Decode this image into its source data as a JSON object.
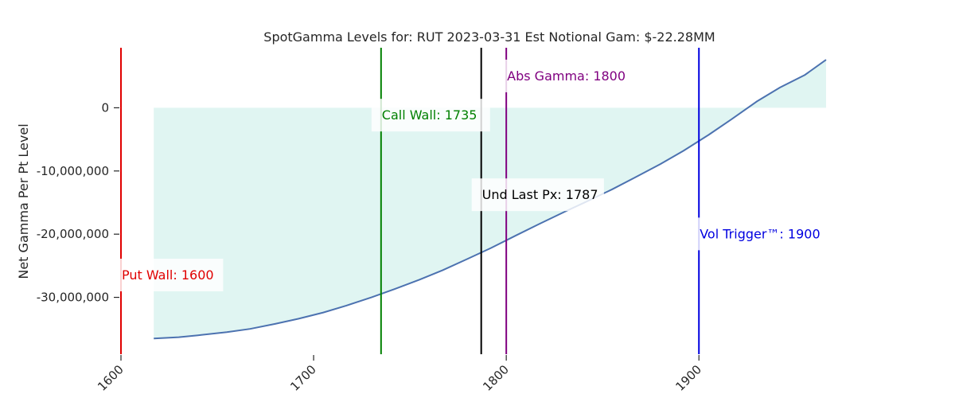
{
  "chart_data": {
    "type": "line",
    "title": "SpotGamma Levels for: RUT  2023-03-31 Est Notional Gam: $-22.28MM",
    "ylabel": "Net Gamma Per Pt Level",
    "xlabel": "",
    "xlim": [
      1600,
      1966
    ],
    "ylim": [
      -39000000,
      9500000
    ],
    "x_ticks": [
      1600,
      1700,
      1800,
      1900
    ],
    "y_ticks": [
      0,
      -10000000,
      -20000000,
      -30000000
    ],
    "y_tick_labels": [
      "0",
      "-10,000,000",
      "-20,000,000",
      "-30,000,000"
    ],
    "grid": false,
    "legend": "none",
    "fill_color": "#e0f5f2",
    "series": [
      {
        "color": "#4c72b0",
        "x": [
          1617,
          1630,
          1640,
          1655,
          1667,
          1680,
          1692,
          1705,
          1717,
          1730,
          1742,
          1755,
          1767,
          1780,
          1792,
          1805,
          1817,
          1830,
          1842,
          1855,
          1867,
          1880,
          1892,
          1905,
          1917,
          1930,
          1942,
          1955,
          1966
        ],
        "values": [
          -36500000,
          -36300000,
          -36000000,
          -35500000,
          -35000000,
          -34200000,
          -33400000,
          -32400000,
          -31300000,
          -30000000,
          -28700000,
          -27200000,
          -25700000,
          -23900000,
          -22200000,
          -20200000,
          -18400000,
          -16500000,
          -14800000,
          -12900000,
          -11000000,
          -8900000,
          -6800000,
          -4300000,
          -1800000,
          1000000,
          3200000,
          5200000,
          7600000
        ]
      }
    ],
    "annotations": [
      {
        "text": "Put Wall: 1600",
        "x": 1600,
        "y": -26400000,
        "color": "#e00000"
      },
      {
        "text": "Call Wall: 1735",
        "x": 1735,
        "y": -1100000,
        "color": "#008000"
      },
      {
        "text": "Und Last Px: 1787",
        "x": 1787,
        "y": -13700000,
        "color": "#000000"
      },
      {
        "text": "Abs Gamma: 1800",
        "x": 1800,
        "y": 5100000,
        "color": "#800080"
      },
      {
        "text": "Vol Trigger™: 1900",
        "x": 1900,
        "y": -19900000,
        "color": "#0000e0"
      }
    ]
  }
}
